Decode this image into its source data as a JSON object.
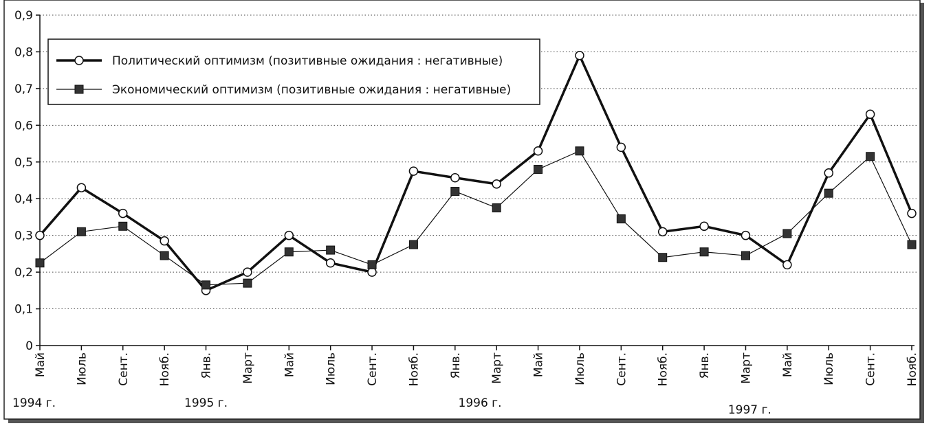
{
  "chart_data": {
    "type": "line",
    "categories": [
      "Май",
      "Июль",
      "Сент.",
      "Нояб.",
      "Янв.",
      "Март",
      "Май",
      "Июль",
      "Сент.",
      "Нояб.",
      "Янв.",
      "Март",
      "Май",
      "Июль",
      "Сент.",
      "Нояб.",
      "Янв.",
      "Март",
      "Май",
      "Июль",
      "Сент.",
      "Нояб."
    ],
    "year_labels": [
      "1994 г.",
      "1995 г.",
      "1996 г.",
      "1997 г."
    ],
    "series": [
      {
        "name": "Политический оптимизм (позитивные ожидания : негативные)",
        "color": "#111111",
        "marker": "circle",
        "values": [
          0.3,
          0.43,
          0.36,
          0.285,
          0.15,
          0.2,
          0.3,
          0.225,
          0.2,
          0.475,
          0.457,
          0.44,
          0.53,
          0.79,
          0.54,
          0.31,
          0.325,
          0.3,
          0.22,
          0.47,
          0.63,
          0.36
        ]
      },
      {
        "name": "Экономический оптимизм (позитивные ожидания : негативные)",
        "color": "#111111",
        "marker": "square",
        "values": [
          0.225,
          0.31,
          0.325,
          0.245,
          0.165,
          0.17,
          0.255,
          0.26,
          0.22,
          0.275,
          0.42,
          0.375,
          0.48,
          0.53,
          0.345,
          0.24,
          0.255,
          0.245,
          0.305,
          0.415,
          0.515,
          0.275
        ]
      }
    ],
    "ylim": [
      0,
      0.9
    ],
    "yticks": [
      0,
      {
        "value": 0.1,
        "label": "0,1"
      },
      {
        "value": 0.2,
        "label": "0,2"
      },
      {
        "value": 0.3,
        "label": "0,3"
      },
      {
        "value": 0.4,
        "label": "0,4"
      },
      {
        "value": 0.5,
        "label": "0,5"
      },
      {
        "value": 0.6,
        "label": "0,6"
      },
      {
        "value": 0.7,
        "label": "0,7"
      },
      {
        "value": 0.8,
        "label": "0,8"
      },
      {
        "value": 0.9,
        "label": "0,9"
      }
    ],
    "grid": true,
    "legend": "upper left"
  }
}
